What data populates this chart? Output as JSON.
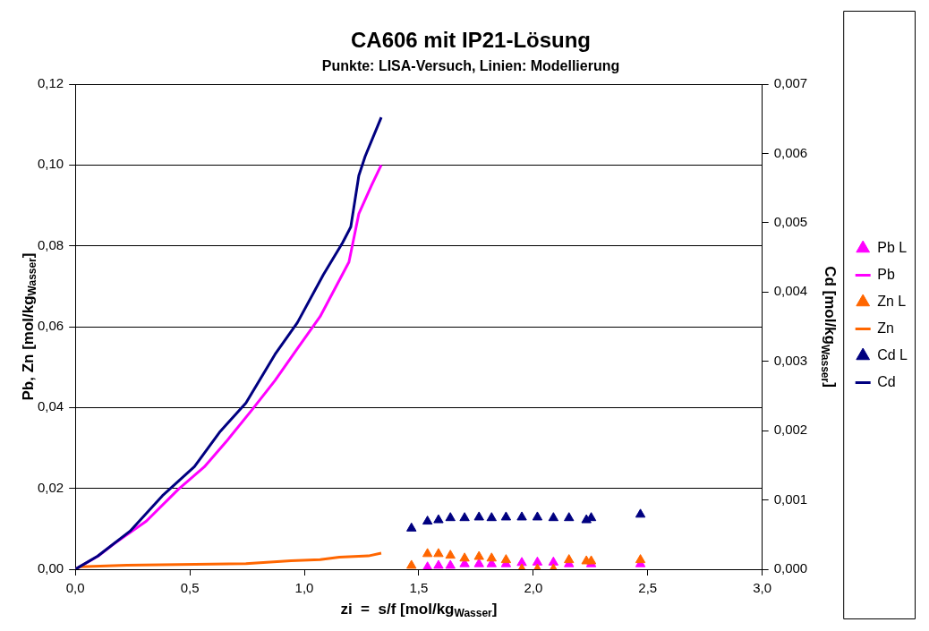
{
  "chart_data": {
    "type": "scatter",
    "title": "CA606 mit IP21-Lösung",
    "subtitle": "Punkte: LISA-Versuch, Linien: Modellierung",
    "xlabel": "zi  =  s/f [mol/kg$_{Wasser}$]",
    "ylabel": "Pb, Zn [mol/kg$_{Wasser}$]",
    "y2label": "Cd [mol/kg$_{Wasser}$]",
    "xlim": [
      0,
      3
    ],
    "xticks": [
      {
        "value": 0,
        "label": "0,0"
      },
      {
        "value": 0.5,
        "label": "0,5"
      },
      {
        "value": 1,
        "label": "1,0"
      },
      {
        "value": 1.5,
        "label": "1,5"
      },
      {
        "value": 2,
        "label": "2,0"
      },
      {
        "value": 2.5,
        "label": "2,5"
      },
      {
        "value": 3,
        "label": "3,0"
      }
    ],
    "ylim": [
      0,
      0.12
    ],
    "yticks": [
      {
        "value": 0,
        "label": "0,00"
      },
      {
        "value": 0.02,
        "label": "0,02"
      },
      {
        "value": 0.04,
        "label": "0,04"
      },
      {
        "value": 0.06,
        "label": "0,06"
      },
      {
        "value": 0.08,
        "label": "0,08"
      },
      {
        "value": 0.1,
        "label": "0,10"
      },
      {
        "value": 0.12,
        "label": "0,12"
      }
    ],
    "y2lim": [
      0,
      0.007
    ],
    "y2ticks": [
      {
        "value": 0,
        "label": "0,000"
      },
      {
        "value": 0.001,
        "label": "0,001"
      },
      {
        "value": 0.002,
        "label": "0,002"
      },
      {
        "value": 0.003,
        "label": "0,003"
      },
      {
        "value": 0.004,
        "label": "0,004"
      },
      {
        "value": 0.005,
        "label": "0,005"
      },
      {
        "value": 0.006,
        "label": "0,006"
      },
      {
        "value": 0.007,
        "label": "0,007"
      }
    ],
    "grid": "y",
    "legend": "right",
    "series": [
      {
        "name": "Pb L",
        "type": "scatter",
        "marker": "triangle",
        "color": "#ff00ff",
        "x": [
          1.538,
          1.586,
          1.638,
          1.7,
          1.763,
          1.818,
          1.881,
          1.95,
          2.018,
          2.088,
          2.156,
          2.232,
          2.253,
          2.468
        ],
        "values": [
          0.0005,
          0.0009,
          0.0009,
          0.0013,
          0.0013,
          0.0013,
          0.0013,
          0.0016,
          0.0017,
          0.0017,
          0.0013,
          null,
          0.0013,
          0.0013
        ]
      },
      {
        "name": "Pb",
        "type": "line",
        "marker": "none",
        "color": "#ff00ff",
        "x": [
          0,
          0.098,
          0.169,
          0.31,
          0.45,
          0.563,
          0.661,
          0.774,
          0.872,
          0.97,
          1.069,
          1.195,
          1.238,
          1.294,
          1.336
        ],
        "values": [
          0,
          0.0032,
          0.0063,
          0.0119,
          0.0198,
          0.0253,
          0.0317,
          0.0396,
          0.0467,
          0.0546,
          0.0625,
          0.076,
          0.0879,
          0.095,
          0.1
        ]
      },
      {
        "name": "Zn L",
        "type": "scatter",
        "marker": "triangle",
        "color": "#ff6600",
        "x": [
          1.468,
          1.538,
          1.586,
          1.638,
          1.7,
          1.763,
          1.818,
          1.881,
          1.95,
          2.018,
          2.088,
          2.156,
          2.232,
          2.253,
          2.468
        ],
        "values": [
          0.0009,
          0.0038,
          0.0038,
          0.0034,
          0.0027,
          0.0031,
          0.0027,
          0.0023,
          0,
          0,
          0,
          0.0023,
          0.002,
          0.002,
          0.0023
        ]
      },
      {
        "name": "Zn",
        "type": "line",
        "marker": "none",
        "color": "#ff6600",
        "x": [
          0,
          0.02,
          0.225,
          0.745,
          0.942,
          1.069,
          1.153,
          1.28,
          1.336
        ],
        "values": [
          0,
          0.0006,
          0.001,
          0.0014,
          0.0021,
          0.0024,
          0.003,
          0.0033,
          0.004
        ]
      },
      {
        "name": "Cd L",
        "type": "scatter",
        "marker": "triangle",
        "axis": "y2",
        "color": "#000080",
        "x": [
          1.468,
          1.538,
          1.586,
          1.638,
          1.7,
          1.763,
          1.818,
          1.881,
          1.95,
          2.018,
          2.088,
          2.156,
          2.232,
          2.253,
          2.468
        ],
        "values": [
          0.00059,
          0.00069,
          0.00071,
          0.00074,
          0.00074,
          0.00075,
          0.00074,
          0.00075,
          0.00075,
          0.00075,
          0.00074,
          0.00074,
          0.00071,
          0.00074,
          0.00079
        ]
      },
      {
        "name": "Cd",
        "type": "line",
        "marker": "none",
        "axis": "y2",
        "color": "#000080",
        "x": [
          0,
          0.098,
          0.239,
          0.38,
          0.52,
          0.633,
          0.745,
          0.872,
          0.97,
          1.083,
          1.167,
          1.203,
          1.238,
          1.266,
          1.336
        ],
        "values": [
          0,
          0.00019,
          0.00055,
          0.00106,
          0.00148,
          0.00199,
          0.0024,
          0.0031,
          0.00356,
          0.00425,
          0.00471,
          0.00494,
          0.00568,
          0.00596,
          0.00652
        ]
      }
    ]
  }
}
